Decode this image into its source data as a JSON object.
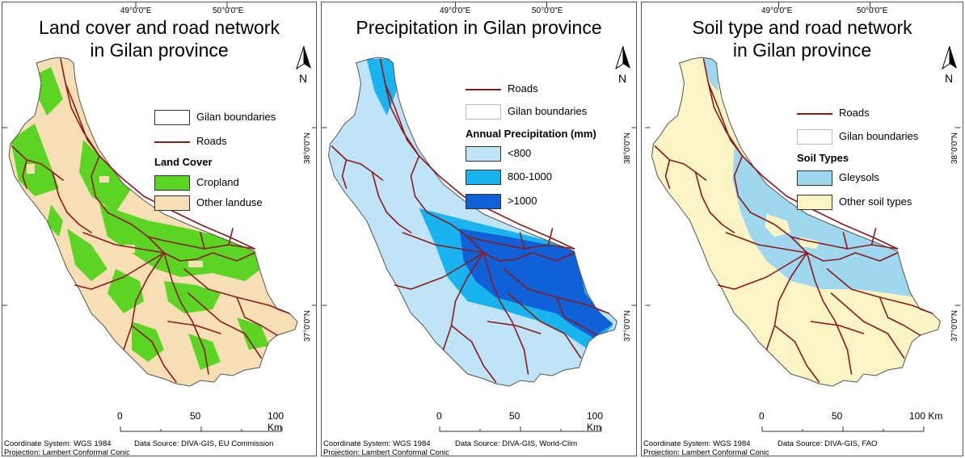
{
  "panels": [
    {
      "title_line1": "Land cover and road network",
      "title_line2": "in Gilan province",
      "coords": {
        "lon1": "49°0'0\"E",
        "lon2": "50°0'0\"E",
        "lat1": "38°0'0\"N",
        "lat2": "37°0'0\"N"
      },
      "north_label": "N",
      "legend": {
        "boundary_label": "Gilan boundaries",
        "roads_label": "Roads",
        "heading": "Land Cover",
        "classes": [
          {
            "label": "Cropland",
            "color": "#5bd424"
          },
          {
            "label": "Other landuse",
            "color": "#f7dfb5"
          }
        ]
      },
      "scale": {
        "ticks": [
          "0",
          "50",
          "100 Km"
        ]
      },
      "footer": {
        "coord_system": "Coordinate System: WGS 1984",
        "projection": "Projection: Lambert Conformal Conic",
        "source": "Data Source: DIVA-GIS, EU Commission"
      }
    },
    {
      "title_line1": "Precipitation in Gilan province",
      "title_line2": "",
      "coords": {
        "lon1": "49°0'0\"E",
        "lon2": "50°0'0\"E",
        "lat1": "38°0'0\"N",
        "lat2": "37°0'0\"N"
      },
      "north_label": "N",
      "legend": {
        "roads_label": "Roads",
        "boundary_label": "Gilan boundaries",
        "heading": "Annual Precipitation (mm)",
        "classes": [
          {
            "label": "<800",
            "color": "#bfe3f7"
          },
          {
            "label": "800-1000",
            "color": "#19b4f0"
          },
          {
            "label": ">1000",
            "color": "#1060d8"
          }
        ]
      },
      "scale": {
        "ticks": [
          "0",
          "50",
          "100 Km"
        ]
      },
      "footer": {
        "coord_system": "Coordinate System: WGS 1984",
        "projection": "Projection: Lambert Conformal Conic",
        "source": "Data Source: DIVA-GIS, World-Clim"
      }
    },
    {
      "title_line1": "Soil type and road network",
      "title_line2": "in Gilan province",
      "coords": {
        "lon1": "49°0'0\"E",
        "lon2": "50°0'0\"E",
        "lat1": "38°0'0\"N",
        "lat2": "37°0'0\"N"
      },
      "north_label": "N",
      "legend": {
        "roads_label": "Roads",
        "boundary_label": "Gilan boundaries",
        "heading": "Soil Types",
        "classes": [
          {
            "label": "Gleysols",
            "color": "#9fd7ef"
          },
          {
            "label": "Other soil types",
            "color": "#fbf5c6"
          }
        ]
      },
      "scale": {
        "ticks": [
          "0",
          "50",
          "100 Km"
        ]
      },
      "footer": {
        "coord_system": "Coordinate System: WGS 1984",
        "projection": "Projection: Lambert Conformal Conic",
        "source": "Data Source: DIVA-GIS, FAO"
      }
    }
  ],
  "colors": {
    "road": "#8b1a1a",
    "boundary": "#555555"
  }
}
